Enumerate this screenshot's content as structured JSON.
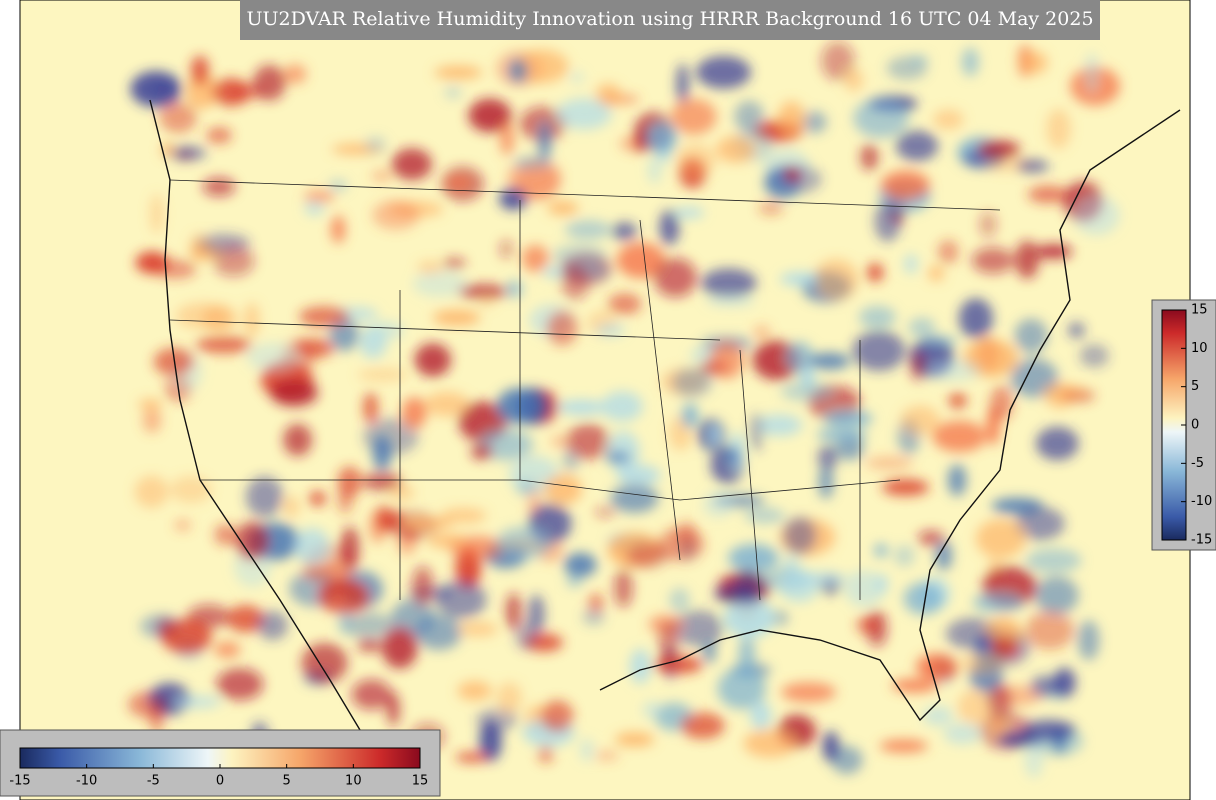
{
  "title": "UU2DVAR Relative Humidity Innovation using HRRR Background 16 UTC 04 May 2025",
  "colorbar_right": {
    "limits": [
      -15,
      15
    ],
    "ticks": [
      -15,
      -10,
      -5,
      0,
      5,
      10,
      15
    ]
  },
  "colorbar_bottom": {
    "limits": [
      -15,
      15
    ],
    "ticks": [
      -15,
      -10,
      -5,
      0,
      5,
      10,
      15
    ]
  }
}
